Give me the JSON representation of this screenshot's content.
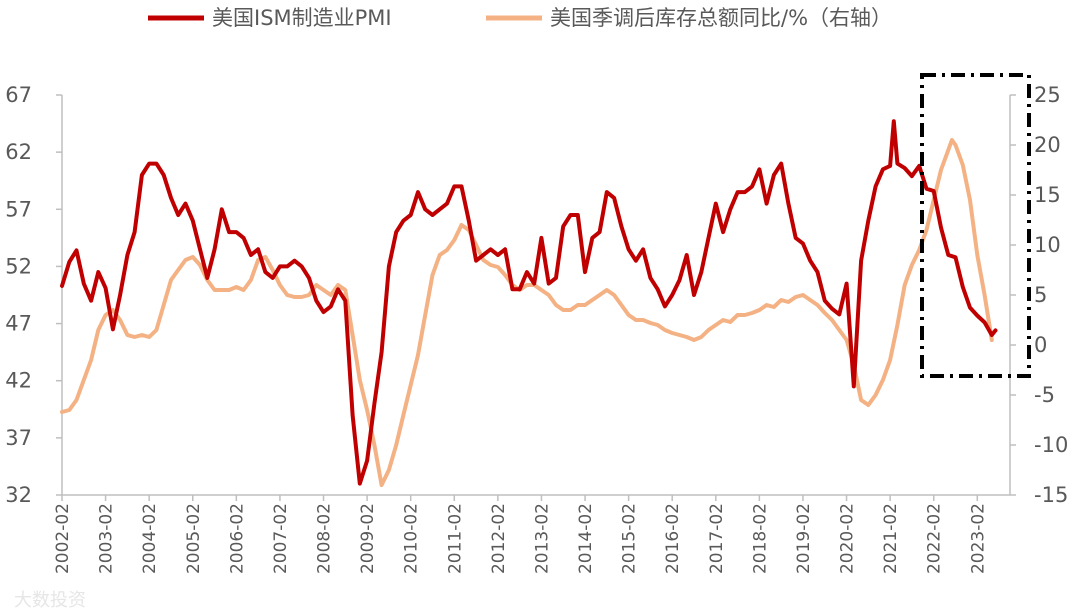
{
  "chart_data": {
    "type": "line",
    "title": "",
    "xlabel": "",
    "ylabel": "",
    "y_left_lim": [
      32,
      67
    ],
    "y_left_ticks": [
      32,
      37,
      42,
      47,
      52,
      57,
      62,
      67
    ],
    "y_right_lim": [
      -15,
      25
    ],
    "y_right_ticks": [
      -15,
      -10,
      -5,
      0,
      5,
      10,
      15,
      20,
      25
    ],
    "x_tick_labels": [
      "2002-02",
      "2003-02",
      "2004-02",
      "2005-02",
      "2006-02",
      "2007-02",
      "2008-02",
      "2009-02",
      "2010-02",
      "2011-02",
      "2012-02",
      "2013-02",
      "2014-02",
      "2015-02",
      "2016-02",
      "2017-02",
      "2018-02",
      "2019-02",
      "2020-02",
      "2021-02",
      "2022-02",
      "2023-02"
    ],
    "legend_position": "top",
    "grid": false,
    "series": [
      {
        "name": "美国ISM制造业PMI",
        "axis": "left",
        "color": "#c00000",
        "points": [
          [
            "2002-02",
            50.3
          ],
          [
            "2002-04",
            52.4
          ],
          [
            "2002-06",
            53.4
          ],
          [
            "2002-08",
            50.5
          ],
          [
            "2002-10",
            49.0
          ],
          [
            "2002-12",
            51.5
          ],
          [
            "2003-02",
            50.1
          ],
          [
            "2003-04",
            46.5
          ],
          [
            "2003-06",
            49.5
          ],
          [
            "2003-08",
            53.0
          ],
          [
            "2003-10",
            55.0
          ],
          [
            "2003-12",
            60.0
          ],
          [
            "2004-02",
            61.0
          ],
          [
            "2004-04",
            61.0
          ],
          [
            "2004-06",
            60.0
          ],
          [
            "2004-08",
            58.0
          ],
          [
            "2004-10",
            56.5
          ],
          [
            "2004-12",
            57.5
          ],
          [
            "2005-02",
            56.0
          ],
          [
            "2005-04",
            53.5
          ],
          [
            "2005-06",
            51.0
          ],
          [
            "2005-08",
            53.5
          ],
          [
            "2005-10",
            57.0
          ],
          [
            "2005-12",
            55.0
          ],
          [
            "2006-02",
            55.0
          ],
          [
            "2006-04",
            54.5
          ],
          [
            "2006-06",
            53.0
          ],
          [
            "2006-08",
            53.5
          ],
          [
            "2006-10",
            51.5
          ],
          [
            "2006-12",
            51.0
          ],
          [
            "2007-02",
            52.0
          ],
          [
            "2007-04",
            52.0
          ],
          [
            "2007-06",
            52.5
          ],
          [
            "2007-08",
            52.0
          ],
          [
            "2007-10",
            51.0
          ],
          [
            "2007-12",
            49.0
          ],
          [
            "2008-02",
            48.0
          ],
          [
            "2008-04",
            48.5
          ],
          [
            "2008-06",
            50.0
          ],
          [
            "2008-08",
            49.0
          ],
          [
            "2008-10",
            39.0
          ],
          [
            "2008-12",
            33.0
          ],
          [
            "2009-02",
            35.0
          ],
          [
            "2009-04",
            40.0
          ],
          [
            "2009-06",
            44.5
          ],
          [
            "2009-08",
            52.0
          ],
          [
            "2009-10",
            55.0
          ],
          [
            "2009-12",
            56.0
          ],
          [
            "2010-02",
            56.5
          ],
          [
            "2010-04",
            58.5
          ],
          [
            "2010-06",
            57.0
          ],
          [
            "2010-08",
            56.5
          ],
          [
            "2010-10",
            57.0
          ],
          [
            "2010-12",
            57.5
          ],
          [
            "2011-02",
            59.0
          ],
          [
            "2011-04",
            59.0
          ],
          [
            "2011-06",
            56.0
          ],
          [
            "2011-08",
            52.5
          ],
          [
            "2011-10",
            53.0
          ],
          [
            "2011-12",
            53.5
          ],
          [
            "2012-02",
            53.0
          ],
          [
            "2012-04",
            53.5
          ],
          [
            "2012-06",
            50.0
          ],
          [
            "2012-08",
            50.0
          ],
          [
            "2012-10",
            51.5
          ],
          [
            "2012-12",
            50.5
          ],
          [
            "2013-02",
            54.5
          ],
          [
            "2013-04",
            50.5
          ],
          [
            "2013-06",
            51.0
          ],
          [
            "2013-08",
            55.5
          ],
          [
            "2013-10",
            56.5
          ],
          [
            "2013-12",
            56.5
          ],
          [
            "2014-02",
            51.5
          ],
          [
            "2014-04",
            54.5
          ],
          [
            "2014-06",
            55.0
          ],
          [
            "2014-08",
            58.5
          ],
          [
            "2014-10",
            58.0
          ],
          [
            "2014-12",
            55.5
          ],
          [
            "2015-02",
            53.5
          ],
          [
            "2015-04",
            52.5
          ],
          [
            "2015-06",
            53.5
          ],
          [
            "2015-08",
            51.0
          ],
          [
            "2015-10",
            50.0
          ],
          [
            "2015-12",
            48.5
          ],
          [
            "2016-02",
            49.5
          ],
          [
            "2016-04",
            50.8
          ],
          [
            "2016-06",
            53.0
          ],
          [
            "2016-08",
            49.5
          ],
          [
            "2016-10",
            51.5
          ],
          [
            "2016-12",
            54.5
          ],
          [
            "2017-02",
            57.5
          ],
          [
            "2017-04",
            55.0
          ],
          [
            "2017-06",
            57.0
          ],
          [
            "2017-08",
            58.5
          ],
          [
            "2017-10",
            58.5
          ],
          [
            "2017-12",
            59.0
          ],
          [
            "2018-02",
            60.5
          ],
          [
            "2018-04",
            57.5
          ],
          [
            "2018-06",
            60.0
          ],
          [
            "2018-08",
            61.0
          ],
          [
            "2018-10",
            57.5
          ],
          [
            "2018-12",
            54.5
          ],
          [
            "2019-02",
            54.0
          ],
          [
            "2019-04",
            52.5
          ],
          [
            "2019-06",
            51.5
          ],
          [
            "2019-08",
            49.0
          ],
          [
            "2019-10",
            48.3
          ],
          [
            "2019-12",
            47.8
          ],
          [
            "2020-02",
            50.5
          ],
          [
            "2020-04",
            41.5
          ],
          [
            "2020-06",
            52.5
          ],
          [
            "2020-08",
            56.0
          ],
          [
            "2020-10",
            59.0
          ],
          [
            "2020-12",
            60.5
          ],
          [
            "2021-02",
            60.8
          ],
          [
            "2021-03",
            64.7
          ],
          [
            "2021-04",
            61.0
          ],
          [
            "2021-06",
            60.6
          ],
          [
            "2021-08",
            59.9
          ],
          [
            "2021-10",
            60.8
          ],
          [
            "2021-12",
            58.8
          ],
          [
            "2022-02",
            58.6
          ],
          [
            "2022-04",
            55.4
          ],
          [
            "2022-06",
            53.0
          ],
          [
            "2022-08",
            52.8
          ],
          [
            "2022-10",
            50.2
          ],
          [
            "2022-12",
            48.4
          ],
          [
            "2023-02",
            47.7
          ],
          [
            "2023-04",
            47.1
          ],
          [
            "2023-06",
            46.0
          ],
          [
            "2023-07",
            46.4
          ]
        ]
      },
      {
        "name": "美国季调后库存总额同比/%（右轴）",
        "axis": "right",
        "color": "#f4b183",
        "points": [
          [
            "2002-02",
            -6.7
          ],
          [
            "2002-04",
            -6.5
          ],
          [
            "2002-06",
            -5.5
          ],
          [
            "2002-08",
            -3.5
          ],
          [
            "2002-10",
            -1.5
          ],
          [
            "2002-12",
            1.5
          ],
          [
            "2003-02",
            3.0
          ],
          [
            "2003-04",
            3.5
          ],
          [
            "2003-06",
            2.5
          ],
          [
            "2003-08",
            1.0
          ],
          [
            "2003-10",
            0.8
          ],
          [
            "2003-12",
            1.0
          ],
          [
            "2004-02",
            0.8
          ],
          [
            "2004-04",
            1.5
          ],
          [
            "2004-06",
            4.0
          ],
          [
            "2004-08",
            6.5
          ],
          [
            "2004-10",
            7.5
          ],
          [
            "2004-12",
            8.5
          ],
          [
            "2005-02",
            8.8
          ],
          [
            "2005-04",
            8.0
          ],
          [
            "2005-06",
            6.5
          ],
          [
            "2005-08",
            5.5
          ],
          [
            "2005-10",
            5.5
          ],
          [
            "2005-12",
            5.5
          ],
          [
            "2006-02",
            5.8
          ],
          [
            "2006-04",
            5.5
          ],
          [
            "2006-06",
            6.5
          ],
          [
            "2006-08",
            8.5
          ],
          [
            "2006-10",
            8.8
          ],
          [
            "2006-12",
            7.5
          ],
          [
            "2007-02",
            6.0
          ],
          [
            "2007-04",
            5.0
          ],
          [
            "2007-06",
            4.8
          ],
          [
            "2007-08",
            4.8
          ],
          [
            "2007-10",
            5.0
          ],
          [
            "2007-12",
            6.0
          ],
          [
            "2008-02",
            5.5
          ],
          [
            "2008-04",
            5.0
          ],
          [
            "2008-06",
            6.0
          ],
          [
            "2008-08",
            5.5
          ],
          [
            "2008-10",
            1.0
          ],
          [
            "2008-12",
            -3.5
          ],
          [
            "2009-02",
            -6.5
          ],
          [
            "2009-04",
            -10.0
          ],
          [
            "2009-06",
            -14.0
          ],
          [
            "2009-08",
            -12.5
          ],
          [
            "2009-10",
            -10.0
          ],
          [
            "2009-12",
            -7.0
          ],
          [
            "2010-02",
            -4.0
          ],
          [
            "2010-04",
            -1.0
          ],
          [
            "2010-06",
            3.0
          ],
          [
            "2010-08",
            7.0
          ],
          [
            "2010-10",
            9.0
          ],
          [
            "2010-12",
            9.5
          ],
          [
            "2011-02",
            10.5
          ],
          [
            "2011-04",
            12.0
          ],
          [
            "2011-06",
            11.5
          ],
          [
            "2011-08",
            10.0
          ],
          [
            "2011-10",
            8.5
          ],
          [
            "2011-12",
            8.0
          ],
          [
            "2012-02",
            7.8
          ],
          [
            "2012-04",
            7.0
          ],
          [
            "2012-06",
            6.0
          ],
          [
            "2012-08",
            5.5
          ],
          [
            "2012-10",
            6.0
          ],
          [
            "2012-12",
            6.0
          ],
          [
            "2013-02",
            5.5
          ],
          [
            "2013-04",
            5.0
          ],
          [
            "2013-06",
            4.0
          ],
          [
            "2013-08",
            3.5
          ],
          [
            "2013-10",
            3.5
          ],
          [
            "2013-12",
            4.0
          ],
          [
            "2014-02",
            4.0
          ],
          [
            "2014-04",
            4.5
          ],
          [
            "2014-06",
            5.0
          ],
          [
            "2014-08",
            5.5
          ],
          [
            "2014-10",
            5.0
          ],
          [
            "2014-12",
            4.0
          ],
          [
            "2015-02",
            3.0
          ],
          [
            "2015-04",
            2.5
          ],
          [
            "2015-06",
            2.5
          ],
          [
            "2015-08",
            2.2
          ],
          [
            "2015-10",
            2.0
          ],
          [
            "2015-12",
            1.5
          ],
          [
            "2016-02",
            1.2
          ],
          [
            "2016-04",
            1.0
          ],
          [
            "2016-06",
            0.8
          ],
          [
            "2016-08",
            0.5
          ],
          [
            "2016-10",
            0.8
          ],
          [
            "2016-12",
            1.5
          ],
          [
            "2017-02",
            2.0
          ],
          [
            "2017-04",
            2.5
          ],
          [
            "2017-06",
            2.3
          ],
          [
            "2017-08",
            3.0
          ],
          [
            "2017-10",
            3.0
          ],
          [
            "2017-12",
            3.2
          ],
          [
            "2018-02",
            3.5
          ],
          [
            "2018-04",
            4.0
          ],
          [
            "2018-06",
            3.8
          ],
          [
            "2018-08",
            4.5
          ],
          [
            "2018-10",
            4.3
          ],
          [
            "2018-12",
            4.8
          ],
          [
            "2019-02",
            5.0
          ],
          [
            "2019-04",
            4.5
          ],
          [
            "2019-06",
            4.0
          ],
          [
            "2019-08",
            3.2
          ],
          [
            "2019-10",
            2.5
          ],
          [
            "2019-12",
            1.5
          ],
          [
            "2020-02",
            0.5
          ],
          [
            "2020-04",
            -2.0
          ],
          [
            "2020-06",
            -5.5
          ],
          [
            "2020-08",
            -6.0
          ],
          [
            "2020-10",
            -5.0
          ],
          [
            "2020-12",
            -3.5
          ],
          [
            "2021-02",
            -1.5
          ],
          [
            "2021-04",
            2.0
          ],
          [
            "2021-06",
            6.0
          ],
          [
            "2021-08",
            8.0
          ],
          [
            "2021-10",
            9.5
          ],
          [
            "2021-12",
            11.5
          ],
          [
            "2022-02",
            14.5
          ],
          [
            "2022-04",
            17.5
          ],
          [
            "2022-06",
            19.5
          ],
          [
            "2022-07",
            20.5
          ],
          [
            "2022-08",
            20.0
          ],
          [
            "2022-10",
            18.0
          ],
          [
            "2022-12",
            14.5
          ],
          [
            "2023-02",
            9.0
          ],
          [
            "2023-04",
            5.0
          ],
          [
            "2023-06",
            0.5
          ]
        ]
      }
    ],
    "annotation": "dash-dot rectangle highlighting 2021-2023"
  },
  "watermark": "大数投资"
}
